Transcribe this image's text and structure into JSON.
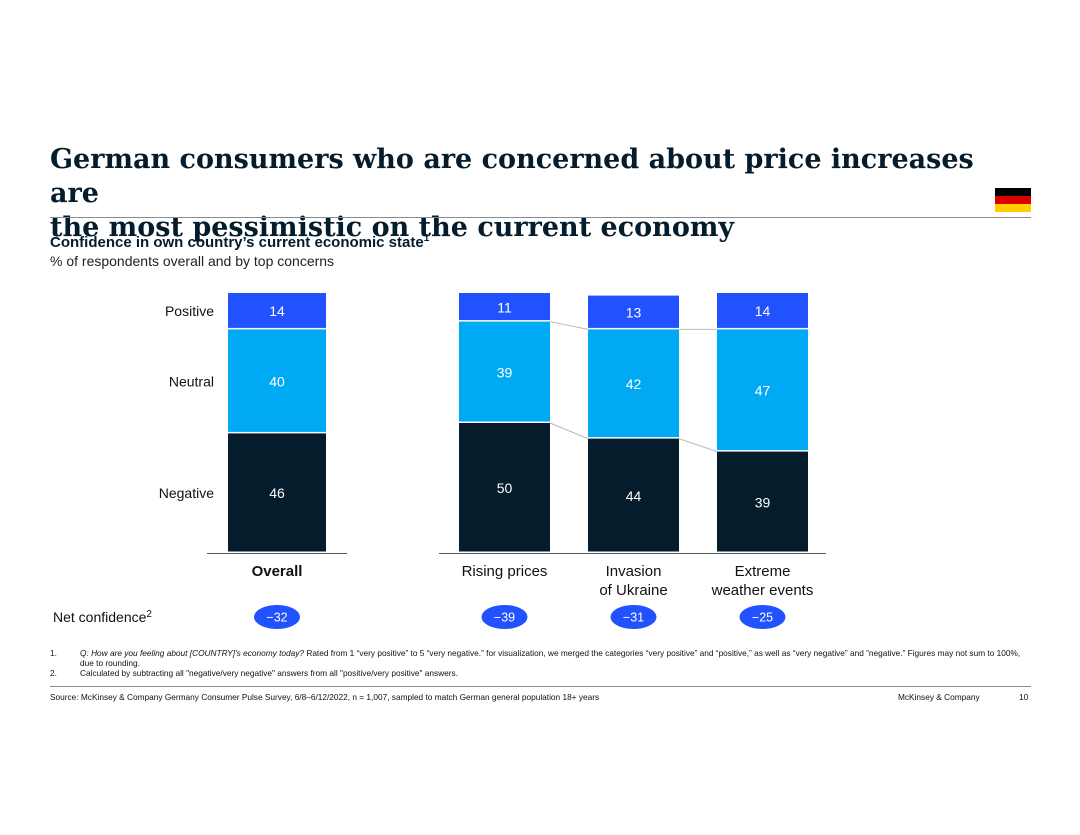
{
  "header": {
    "title_line1": "German consumers who are concerned about price increases are",
    "title_line2": "the most pessimistic on the current economy",
    "flag_colors": [
      "#000000",
      "#dd0000",
      "#ffce00"
    ]
  },
  "subtitle": {
    "text": "Confidence in own country’s current economic state",
    "sup": "1"
  },
  "subnote": "% of respondents overall and by top concerns",
  "colors": {
    "positive": "#2251ff",
    "neutral": "#00a9f4",
    "negative": "#051c2c",
    "badge": "#2251ff"
  },
  "chart_data": {
    "type": "bar",
    "stacked": true,
    "title": "Confidence in own country’s current economic state",
    "ylabel": "% of respondents overall and by top concerns",
    "categories": [
      "Overall",
      "Rising prices",
      "Invasion of Ukraine",
      "Extreme weather events"
    ],
    "category_lines": [
      [
        "Overall"
      ],
      [
        "Rising prices"
      ],
      [
        "Invasion",
        "of Ukraine"
      ],
      [
        "Extreme",
        "weather events"
      ]
    ],
    "series": [
      {
        "name": "Negative",
        "values": [
          46,
          50,
          44,
          39
        ]
      },
      {
        "name": "Neutral",
        "values": [
          40,
          39,
          42,
          47
        ]
      },
      {
        "name": "Positive",
        "values": [
          14,
          11,
          13,
          14
        ]
      }
    ],
    "net_confidence_label": "Net confidence",
    "net_confidence_sup": "2",
    "net_confidence": [
      "−32",
      "−39",
      "−31",
      "−25"
    ],
    "ylim": [
      0,
      100
    ]
  },
  "footnotes": [
    {
      "num": "1.",
      "italic": "Q: How are you feeling about [COUNTRY]'s economy today?",
      "text": " Rated from 1 “very positive” to 5 “very negative.” for visualization, we merged the categories “very positive” and “positive,” as well as “very negative” and ”negative.” Figures may not sum to 100%, due to rounding."
    },
    {
      "num": "2.",
      "italic": "",
      "text": "Calculated by subtracting all \"negative/very negative\" answers from all \"positive/very positive\" answers."
    }
  ],
  "footer": {
    "source": "Source: McKinsey & Company Germany Consumer Pulse Survey, 6/8–6/12/2022, n = 1,007, sampled to match German general population 18+ years",
    "brand": "McKinsey & Company",
    "page": "10"
  }
}
